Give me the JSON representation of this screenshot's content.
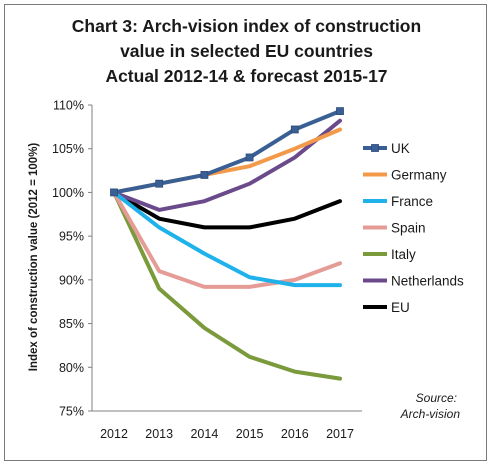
{
  "chart_data": {
    "type": "line",
    "title_lines": [
      "Chart 3:  Arch-vision index of construction",
      "value in selected EU countries",
      "Actual 2012-14 & forecast 2015-17"
    ],
    "ylabel": "Index of construction value (2012 = 100%)",
    "xlabel": "",
    "categories": [
      "2012",
      "2013",
      "2014",
      "2015",
      "2016",
      "2017"
    ],
    "y_ticks": [
      "75%",
      "80%",
      "85%",
      "90%",
      "95%",
      "100%",
      "105%",
      "110%"
    ],
    "ylim": [
      75,
      110
    ],
    "grid": false,
    "legend_position": "right",
    "source_lines": [
      "Source:",
      "Arch-vision"
    ],
    "series": [
      {
        "name": "UK",
        "color": "#3a5f94",
        "marker": "square",
        "values": [
          100,
          101,
          102,
          104,
          107.2,
          109.3
        ]
      },
      {
        "name": "Germany",
        "color": "#f39a4a",
        "marker": "none",
        "values": [
          100,
          101,
          102,
          103,
          105,
          107.2
        ]
      },
      {
        "name": "France",
        "color": "#1fb2ea",
        "marker": "none",
        "values": [
          100,
          96,
          93,
          90.3,
          89.4,
          89.4
        ]
      },
      {
        "name": "Spain",
        "color": "#e59c96",
        "marker": "none",
        "values": [
          100,
          91,
          89.2,
          89.2,
          90,
          91.9
        ]
      },
      {
        "name": "Italy",
        "color": "#7a9a3c",
        "marker": "none",
        "values": [
          100,
          89,
          84.5,
          81.2,
          79.5,
          78.7
        ]
      },
      {
        "name": "Netherlands",
        "color": "#6b4a8c",
        "marker": "none",
        "values": [
          100,
          98,
          99,
          101,
          104,
          108.2
        ]
      },
      {
        "name": "EU",
        "color": "#000000",
        "marker": "none",
        "values": [
          100,
          97,
          96,
          96,
          97,
          99
        ]
      }
    ]
  }
}
